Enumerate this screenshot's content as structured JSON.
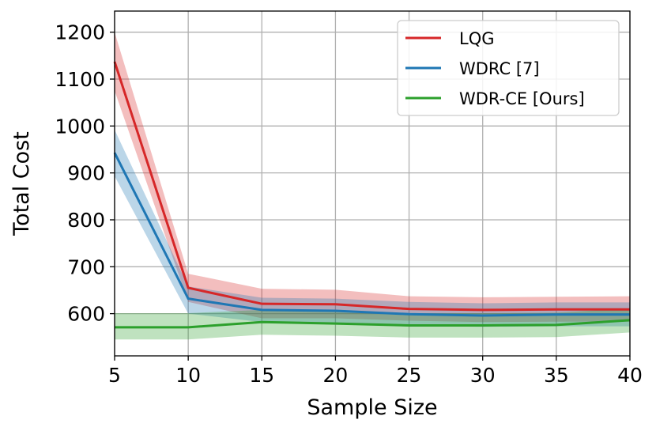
{
  "chart_data": {
    "type": "line",
    "xlabel": "Sample Size",
    "ylabel": "Total Cost",
    "xlim": [
      5,
      40
    ],
    "ylim": [
      510,
      1245
    ],
    "xticks": [
      5,
      10,
      15,
      20,
      25,
      30,
      35,
      40
    ],
    "yticks": [
      600,
      700,
      800,
      900,
      1000,
      1100,
      1200
    ],
    "grid": true,
    "legend_position": "top-right",
    "x": [
      5,
      10,
      15,
      20,
      25,
      30,
      35,
      40
    ],
    "series": [
      {
        "name": "LQG",
        "color": "#d62728",
        "values": [
          1137,
          655,
          621,
          620,
          610,
          608,
          609,
          609
        ],
        "lower": [
          1075,
          625,
          590,
          590,
          585,
          582,
          583,
          583
        ],
        "upper": [
          1200,
          685,
          653,
          651,
          637,
          635,
          636,
          637
        ]
      },
      {
        "name": "WDRC [7]",
        "color": "#1f77b4",
        "values": [
          943,
          632,
          608,
          606,
          599,
          596,
          598,
          598
        ],
        "lower": [
          893,
          600,
          582,
          580,
          574,
          572,
          573,
          573
        ],
        "upper": [
          992,
          658,
          634,
          632,
          625,
          622,
          624,
          624
        ]
      },
      {
        "name": "WDR-CE [Ours]",
        "color": "#2ca02c",
        "values": [
          571,
          571,
          582,
          579,
          575,
          575,
          576,
          586
        ],
        "lower": [
          545,
          545,
          555,
          553,
          549,
          549,
          550,
          560
        ],
        "upper": [
          601,
          601,
          608,
          605,
          601,
          601,
          602,
          611
        ]
      }
    ]
  }
}
